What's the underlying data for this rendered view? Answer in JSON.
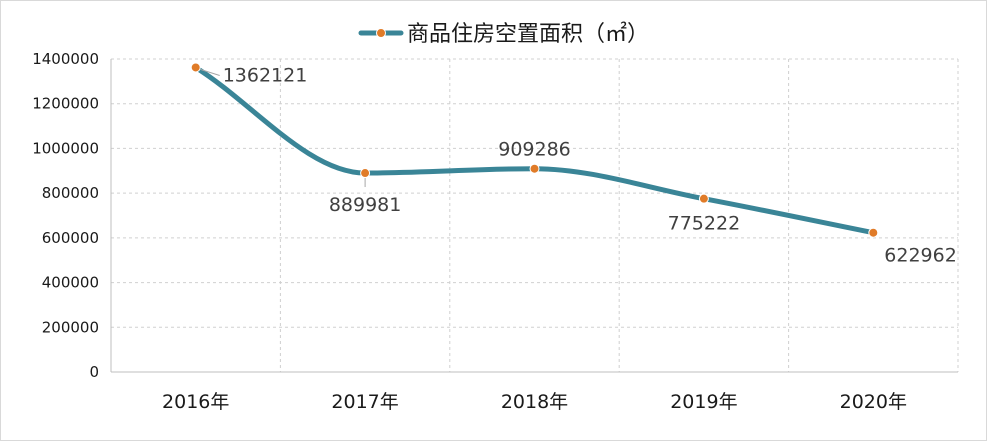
{
  "chart_data": {
    "type": "line",
    "smooth": true,
    "categories": [
      "2016年",
      "2017年",
      "2018年",
      "2019年",
      "2020年"
    ],
    "series": [
      {
        "name": "商品住房空置面积（㎡）",
        "values": [
          1362121,
          889981,
          909286,
          775222,
          622962
        ]
      }
    ],
    "data_labels": [
      "1362121",
      "889981",
      "909286",
      "775222",
      "622962"
    ],
    "ylim": [
      0,
      1400000
    ],
    "yticks": [
      "0",
      "200000",
      "400000",
      "600000",
      "800000",
      "1000000",
      "1200000",
      "1400000"
    ],
    "grid": true,
    "legend_position": "top",
    "colors": {
      "line": "#3a8597",
      "marker": "#e07b28",
      "grid": "#d0d0d0"
    }
  }
}
